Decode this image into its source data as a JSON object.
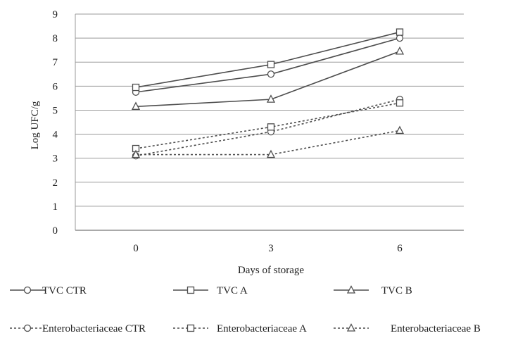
{
  "chart_data": {
    "type": "line",
    "title": "",
    "xlabel": "Days of storage",
    "ylabel": "Log UFC/g",
    "x": [
      "0",
      "3",
      "6"
    ],
    "ylim": [
      0,
      9
    ],
    "yticks": [
      "0",
      "1",
      "2",
      "3",
      "4",
      "5",
      "6",
      "7",
      "8",
      "9"
    ],
    "grid": true,
    "legend_position": "bottom",
    "line_color": "#4d4d4d",
    "series": [
      {
        "name": "TVC CTR",
        "values": [
          5.75,
          6.5,
          8.0
        ],
        "marker": "circle",
        "dash": "solid"
      },
      {
        "name": "TVC A",
        "values": [
          5.95,
          6.9,
          8.25
        ],
        "marker": "square",
        "dash": "solid"
      },
      {
        "name": "TVC B",
        "values": [
          5.15,
          5.45,
          7.45
        ],
        "marker": "triangle",
        "dash": "solid"
      },
      {
        "name": "Enterobacteriaceae CTR",
        "values": [
          3.1,
          4.1,
          5.45
        ],
        "marker": "circle",
        "dash": "dotted"
      },
      {
        "name": "Enterobacteriaceae A",
        "values": [
          3.4,
          4.3,
          5.3
        ],
        "marker": "square",
        "dash": "dotted"
      },
      {
        "name": "Enterobacteriaceae B",
        "values": [
          3.15,
          3.15,
          4.15
        ],
        "marker": "triangle",
        "dash": "dotted"
      }
    ]
  }
}
